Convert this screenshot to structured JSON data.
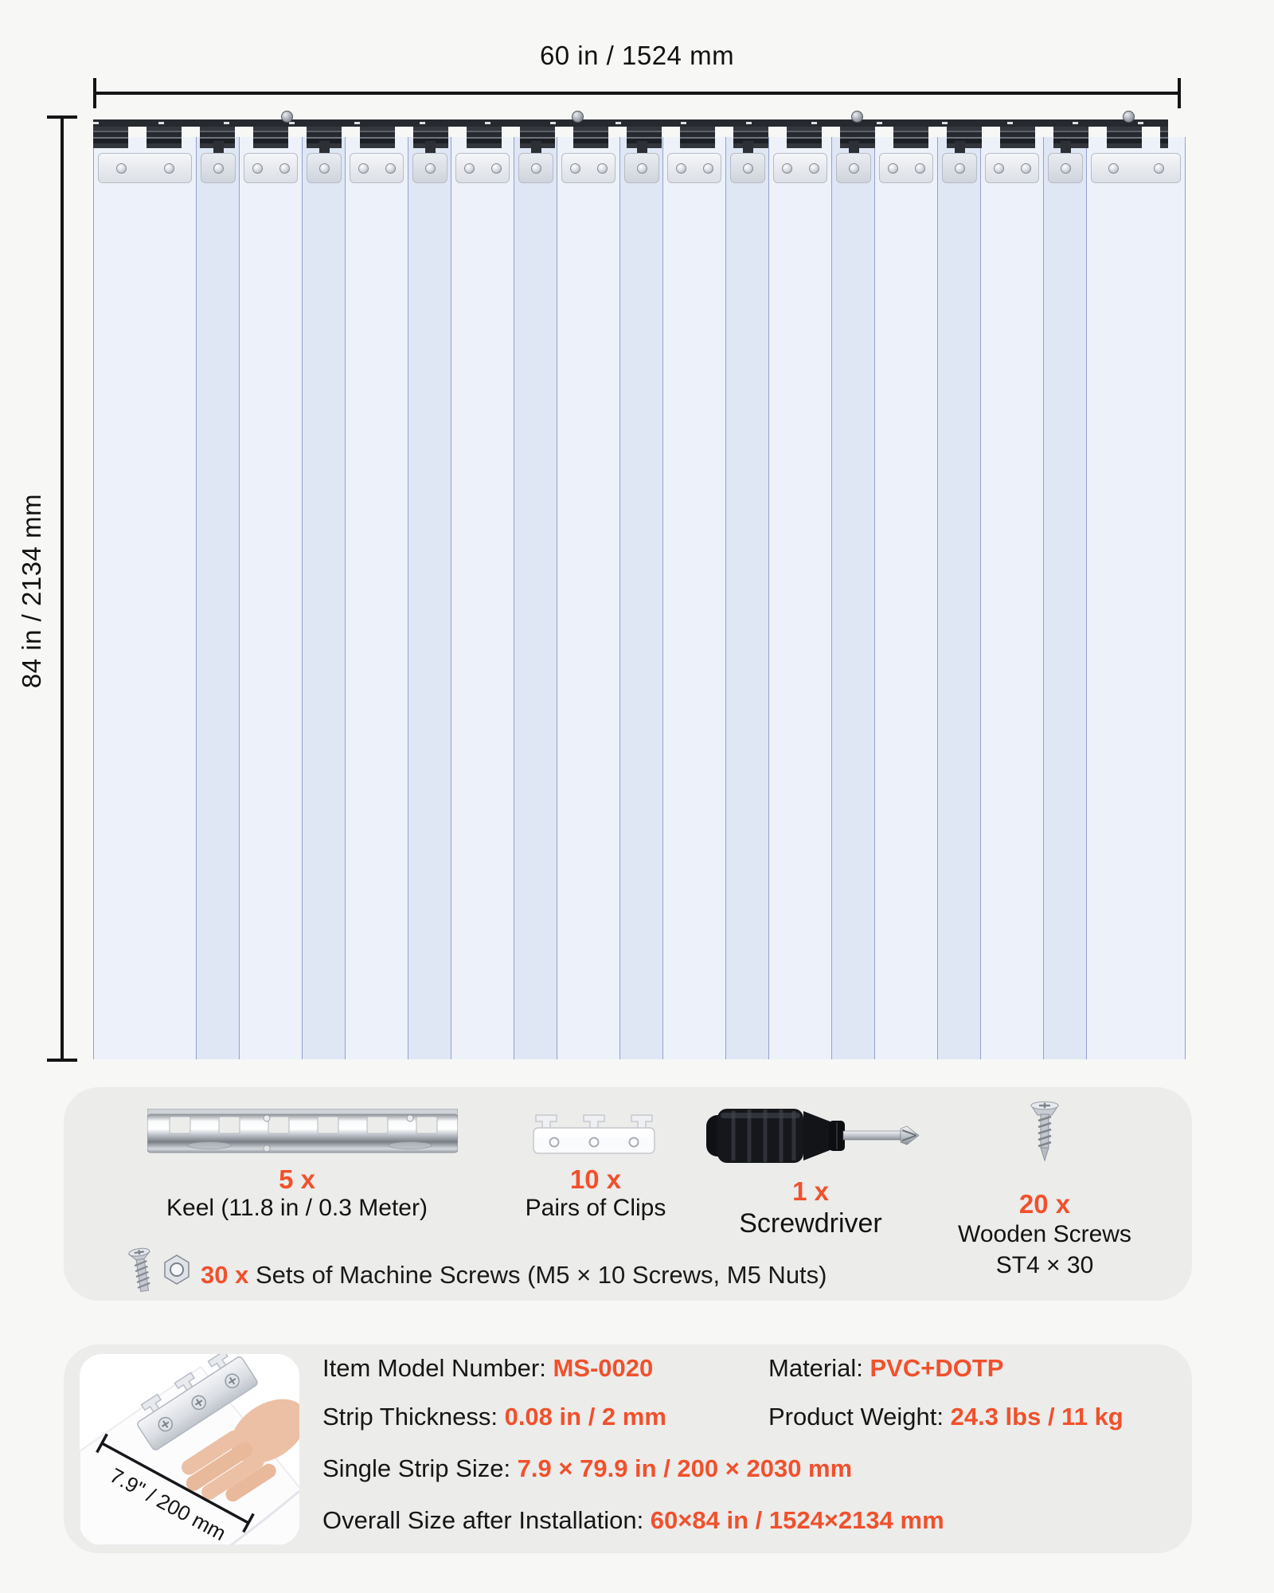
{
  "page": {
    "background": "#f7f7f6",
    "box_background": "#ececeb",
    "accent_color": "#f0512c",
    "ink_color": "#141414"
  },
  "diagram": {
    "width_label": "60 in / 1524 mm",
    "height_label": "84 in / 2134 mm",
    "curtain": {
      "wide_strip_count": 10,
      "overlap_strip_count": 9,
      "strip_light_color": "#edf1fa",
      "strip_overlap_color": "#dfe7f5",
      "rail_color": "#26292e"
    }
  },
  "included_parts": {
    "items": [
      {
        "id": "keel",
        "count": "5 x",
        "label": "Keel (11.8 in / 0.3 Meter)"
      },
      {
        "id": "clips",
        "count": "10 x",
        "label": "Pairs of Clips"
      },
      {
        "id": "screwdriver",
        "count": "1 x",
        "label": "Screwdriver"
      },
      {
        "id": "wooden-screws",
        "count": "20 x",
        "label": "Wooden Screws",
        "label2": "ST4 × 30"
      }
    ],
    "machine_screws": {
      "count": "30 x",
      "label": " Sets of Machine Screws (M5 × 10 Screws, M5 Nuts)"
    }
  },
  "specs": {
    "thumbnail_dim_label": "7.9\" / 200 mm",
    "rows": [
      {
        "label": "Item Model Number: ",
        "value": "MS-0020"
      },
      {
        "label": "Material: ",
        "value": "PVC+DOTP"
      },
      {
        "label": "Strip Thickness: ",
        "value": "0.08 in / 2 mm"
      },
      {
        "label": "Product Weight: ",
        "value": "24.3 lbs / 11 kg"
      },
      {
        "label": "Single Strip Size: ",
        "value": "7.9 × 79.9 in / 200 × 2030 mm"
      },
      {
        "label": "Overall Size after Installation: ",
        "value": "60×84 in / 1524×2134 mm"
      }
    ]
  }
}
